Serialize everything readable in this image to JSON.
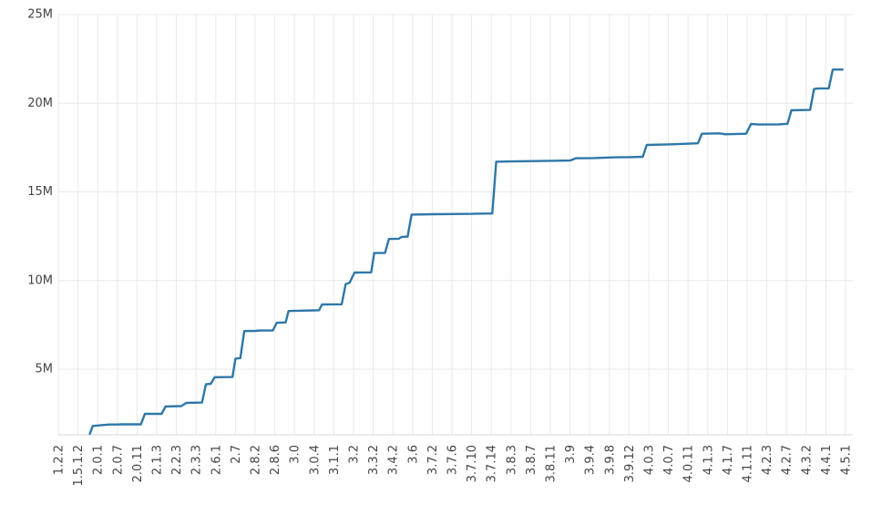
{
  "chart_data": {
    "type": "line",
    "title": "",
    "xlabel": "",
    "ylabel": "",
    "grid": true,
    "legend": "none",
    "ylim": [
      1300000,
      25000000
    ],
    "yticks": [
      5000000,
      10000000,
      15000000,
      20000000,
      25000000
    ],
    "ytick_labels": [
      "5M",
      "10M",
      "15M",
      "20M",
      "25M"
    ],
    "categories": [
      "1.2.2",
      "1.5.1.2",
      "2.0.1",
      "2.0.7",
      "2.0.11",
      "2.1.3",
      "2.2.3",
      "2.3.3",
      "2.6.1",
      "2.7",
      "2.8.2",
      "2.8.6",
      "3.0",
      "3.0.4",
      "3.1.1",
      "3.2",
      "3.3.2",
      "3.4.2",
      "3.6",
      "3.7.2",
      "3.7.6",
      "3.7.10",
      "3.7.14",
      "3.8.3",
      "3.8.7",
      "3.8.11",
      "3.9",
      "3.9.4",
      "3.9.8",
      "3.9.12",
      "4.0.3",
      "4.0.7",
      "4.0.11",
      "4.1.3",
      "4.1.7",
      "4.1.11",
      "4.2.3",
      "4.2.7",
      "4.3.2",
      "4.4.1",
      "4.5.1"
    ],
    "series": [
      {
        "color": "#2e77a8",
        "points": [
          [
            1.6,
            1360000
          ],
          [
            1.75,
            1800000
          ],
          [
            2.25,
            1850000
          ],
          [
            2.6,
            1880000
          ],
          [
            3.0,
            1880000
          ],
          [
            3.2,
            1890000
          ],
          [
            4.2,
            1890000
          ],
          [
            4.4,
            2480000
          ],
          [
            5.25,
            2480000
          ],
          [
            5.45,
            2900000
          ],
          [
            6.25,
            2920000
          ],
          [
            6.5,
            3100000
          ],
          [
            7.3,
            3120000
          ],
          [
            7.5,
            4150000
          ],
          [
            7.75,
            4180000
          ],
          [
            7.95,
            4550000
          ],
          [
            8.85,
            4560000
          ],
          [
            9.0,
            5600000
          ],
          [
            9.25,
            5630000
          ],
          [
            9.45,
            7150000
          ],
          [
            10.0,
            7160000
          ],
          [
            10.25,
            7180000
          ],
          [
            10.9,
            7180000
          ],
          [
            11.1,
            7620000
          ],
          [
            11.55,
            7640000
          ],
          [
            11.7,
            8280000
          ],
          [
            12.35,
            8300000
          ],
          [
            13.0,
            8320000
          ],
          [
            13.25,
            8330000
          ],
          [
            13.4,
            8650000
          ],
          [
            14.4,
            8660000
          ],
          [
            14.6,
            9800000
          ],
          [
            14.8,
            9880000
          ],
          [
            15.05,
            10450000
          ],
          [
            15.9,
            10460000
          ],
          [
            16.05,
            11550000
          ],
          [
            16.6,
            11560000
          ],
          [
            16.8,
            12350000
          ],
          [
            17.3,
            12360000
          ],
          [
            17.45,
            12460000
          ],
          [
            17.75,
            12480000
          ],
          [
            17.95,
            13720000
          ],
          [
            19.0,
            13740000
          ],
          [
            20.0,
            13750000
          ],
          [
            21.05,
            13760000
          ],
          [
            21.25,
            13770000
          ],
          [
            22.05,
            13780000
          ],
          [
            22.25,
            16700000
          ],
          [
            23.0,
            16720000
          ],
          [
            24.3,
            16740000
          ],
          [
            26.0,
            16770000
          ],
          [
            26.3,
            16900000
          ],
          [
            27.2,
            16910000
          ],
          [
            28.3,
            16950000
          ],
          [
            29.0,
            16960000
          ],
          [
            29.7,
            16980000
          ],
          [
            29.9,
            17650000
          ],
          [
            31.0,
            17680000
          ],
          [
            32.5,
            17740000
          ],
          [
            32.7,
            18280000
          ],
          [
            33.6,
            18300000
          ],
          [
            33.9,
            18250000
          ],
          [
            34.95,
            18280000
          ],
          [
            35.2,
            18830000
          ],
          [
            35.6,
            18800000
          ],
          [
            36.6,
            18810000
          ],
          [
            37.05,
            18840000
          ],
          [
            37.25,
            19600000
          ],
          [
            38.2,
            19620000
          ],
          [
            38.4,
            20800000
          ],
          [
            38.6,
            20830000
          ],
          [
            39.15,
            20840000
          ],
          [
            39.35,
            21900000
          ],
          [
            39.85,
            21900000
          ]
        ]
      }
    ]
  }
}
